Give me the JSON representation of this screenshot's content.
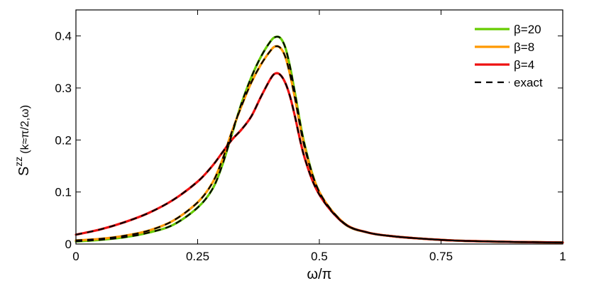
{
  "chart_data": {
    "type": "line",
    "xlabel": "ω/π",
    "ylabel_main": "S",
    "ylabel_sup": "zz",
    "ylabel_rest": "(k≈π/2,ω)",
    "xlim": [
      0,
      1
    ],
    "ylim": [
      0,
      0.45
    ],
    "xticks": [
      0,
      0.25,
      0.5,
      0.75,
      1
    ],
    "xtick_labels": [
      "0",
      "0.25",
      "0.5",
      "0.75",
      "1"
    ],
    "yticks": [
      0,
      0.1,
      0.2,
      0.3,
      0.4
    ],
    "ytick_labels": [
      "0",
      "0.1",
      "0.2",
      "0.3",
      "0.4"
    ],
    "grid": false,
    "legend_position": "top-right",
    "x": [
      0,
      0.05,
      0.1,
      0.15,
      0.2,
      0.25,
      0.28,
      0.3,
      0.32,
      0.34,
      0.36,
      0.38,
      0.4,
      0.41,
      0.42,
      0.43,
      0.44,
      0.45,
      0.47,
      0.5,
      0.55,
      0.6,
      0.65,
      0.7,
      0.75,
      0.8,
      0.9,
      1.0
    ],
    "series": [
      {
        "name": "β=20",
        "color": "#66cc00",
        "dash": false,
        "values": [
          0.005,
          0.008,
          0.013,
          0.022,
          0.037,
          0.07,
          0.105,
          0.15,
          0.21,
          0.27,
          0.32,
          0.36,
          0.39,
          0.398,
          0.396,
          0.378,
          0.34,
          0.29,
          0.19,
          0.1,
          0.04,
          0.022,
          0.015,
          0.011,
          0.008,
          0.006,
          0.004,
          0.003
        ]
      },
      {
        "name": "β=8",
        "color": "#ff9900",
        "dash": false,
        "values": [
          0.007,
          0.01,
          0.016,
          0.026,
          0.045,
          0.08,
          0.117,
          0.16,
          0.215,
          0.265,
          0.31,
          0.345,
          0.372,
          0.38,
          0.377,
          0.36,
          0.325,
          0.28,
          0.185,
          0.1,
          0.041,
          0.022,
          0.015,
          0.011,
          0.008,
          0.006,
          0.004,
          0.003
        ]
      },
      {
        "name": "β=4",
        "color": "#ee1111",
        "dash": false,
        "values": [
          0.018,
          0.028,
          0.042,
          0.06,
          0.085,
          0.12,
          0.15,
          0.175,
          0.2,
          0.22,
          0.245,
          0.283,
          0.318,
          0.328,
          0.325,
          0.31,
          0.283,
          0.245,
          0.165,
          0.095,
          0.04,
          0.022,
          0.015,
          0.011,
          0.008,
          0.006,
          0.004,
          0.003
        ]
      }
    ],
    "exact": {
      "name": "exact",
      "color": "#000000",
      "dash": true
    }
  }
}
